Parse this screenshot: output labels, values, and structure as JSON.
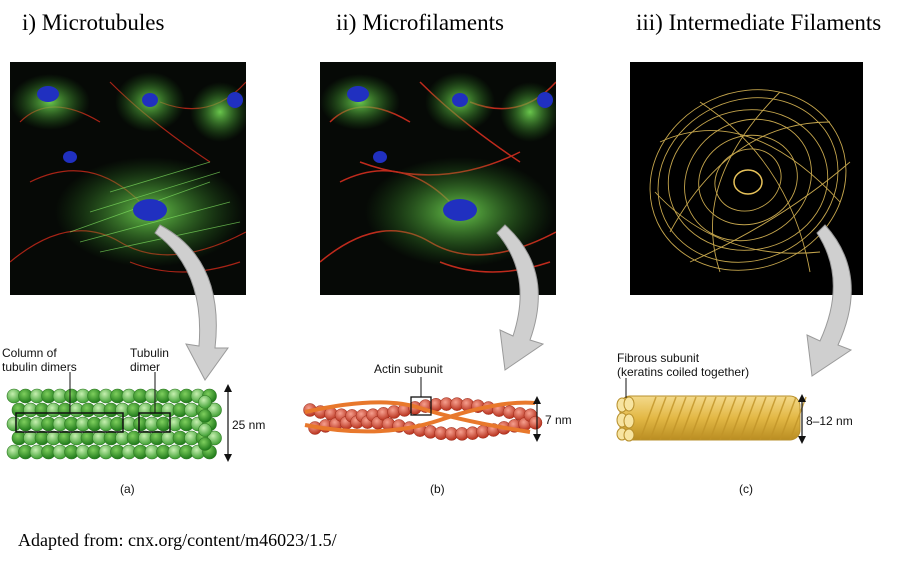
{
  "panels": [
    {
      "title": "i) Microtubules",
      "labels": [
        "Column of",
        "tubulin dimers",
        "Tubulin",
        "dimer"
      ],
      "dimension": "25 nm",
      "caption": "(a)"
    },
    {
      "title": "ii) Microfilaments",
      "labels": [
        "Actin subunit"
      ],
      "dimension": "7 nm",
      "caption": "(b)"
    },
    {
      "title": "iii) Intermediate Filaments",
      "labels": [
        "Fibrous subunit",
        "(keratins coiled together)"
      ],
      "dimension": "8–12 nm",
      "caption": "(c)"
    }
  ],
  "footer": "Adapted from: cnx.org/content/m46023/1.5/",
  "colors": {
    "microtubule_green": "#5fbf4a",
    "actin_red": "#d8503e",
    "keratin_gold": "#e7c25a",
    "arrow_gray": "#c9c9c9"
  }
}
